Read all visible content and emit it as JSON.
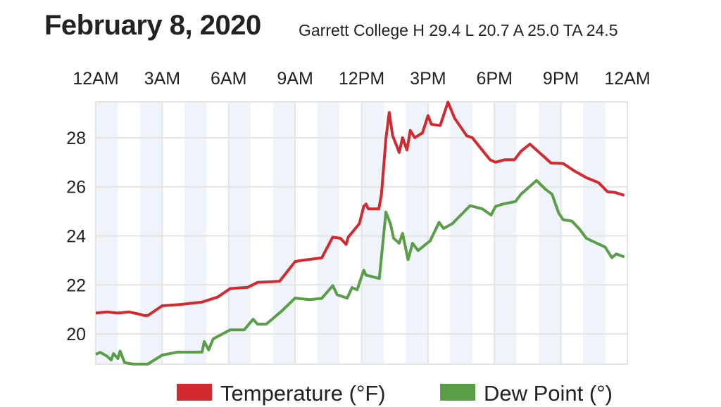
{
  "header": {
    "title": "February 8, 2020",
    "subtitle": "Garrett College H 29.4 L 20.7 A 25.0 TA 24.5"
  },
  "chart_data": {
    "type": "line",
    "title": "February 8, 2020",
    "subtitle": "Garrett College H 29.4 L 20.7 A 25.0 TA 24.5",
    "xlabel": "",
    "ylabel": "",
    "x_unit": "hour of day",
    "xlim": [
      0,
      24
    ],
    "ylim": [
      18.77,
      29.46
    ],
    "x_ticks": [
      0,
      3,
      6,
      9,
      12,
      15,
      18,
      21,
      24
    ],
    "x_tick_labels": [
      "12AM",
      "3AM",
      "6AM",
      "9AM",
      "12PM",
      "3PM",
      "6PM",
      "9PM",
      "12AM"
    ],
    "y_ticks": [
      20,
      22,
      24,
      26,
      28
    ],
    "y_tick_labels": [
      "20",
      "22",
      "24",
      "26",
      "28"
    ],
    "grid": true,
    "shaded_hours": "alternate (even hours)",
    "legend_position": "bottom",
    "series": [
      {
        "name": "Temperature (°F)",
        "color": "#d32a30",
        "points": [
          [
            0,
            20.85
          ],
          [
            0.5,
            20.9
          ],
          [
            1,
            20.85
          ],
          [
            1.5,
            20.9
          ],
          [
            2,
            20.8
          ],
          [
            2.2,
            20.75
          ],
          [
            2.35,
            20.75
          ],
          [
            3,
            21.15
          ],
          [
            3.8,
            21.2
          ],
          [
            4.8,
            21.3
          ],
          [
            5.5,
            21.5
          ],
          [
            6.07,
            21.85
          ],
          [
            6.85,
            21.9
          ],
          [
            7.3,
            22.1
          ],
          [
            8.3,
            22.15
          ],
          [
            9,
            22.95
          ],
          [
            9.3,
            23.0
          ],
          [
            10.2,
            23.1
          ],
          [
            10.7,
            23.95
          ],
          [
            11.05,
            23.9
          ],
          [
            11.3,
            23.65
          ],
          [
            11.4,
            23.95
          ],
          [
            11.9,
            24.5
          ],
          [
            12.1,
            25.2
          ],
          [
            12.2,
            25.3
          ],
          [
            12.3,
            25.1
          ],
          [
            12.78,
            25.1
          ],
          [
            12.9,
            25.7
          ],
          [
            13.1,
            27.97
          ],
          [
            13.25,
            29.03
          ],
          [
            13.4,
            28.1
          ],
          [
            13.7,
            27.4
          ],
          [
            13.85,
            28.0
          ],
          [
            14.05,
            27.5
          ],
          [
            14.2,
            28.3
          ],
          [
            14.4,
            28.0
          ],
          [
            14.75,
            28.2
          ],
          [
            15.0,
            28.9
          ],
          [
            15.15,
            28.55
          ],
          [
            15.55,
            28.5
          ],
          [
            15.9,
            29.45
          ],
          [
            16.2,
            28.8
          ],
          [
            16.75,
            28.08
          ],
          [
            17.0,
            28.0
          ],
          [
            17.3,
            27.66
          ],
          [
            17.8,
            27.1
          ],
          [
            18.05,
            27.0
          ],
          [
            18.45,
            27.1
          ],
          [
            18.9,
            27.1
          ],
          [
            19.2,
            27.45
          ],
          [
            19.6,
            27.74
          ],
          [
            19.9,
            27.5
          ],
          [
            20.55,
            26.97
          ],
          [
            21.1,
            26.95
          ],
          [
            21.6,
            26.65
          ],
          [
            22.15,
            26.37
          ],
          [
            22.7,
            26.17
          ],
          [
            23.1,
            25.8
          ],
          [
            23.45,
            25.77
          ],
          [
            23.86,
            25.65
          ]
        ]
      },
      {
        "name": "Dew Point (°)",
        "color": "#5a9e47",
        "points": [
          [
            0,
            19.17
          ],
          [
            0.2,
            19.25
          ],
          [
            0.5,
            19.1
          ],
          [
            0.7,
            18.94
          ],
          [
            0.8,
            19.2
          ],
          [
            1.0,
            19.0
          ],
          [
            1.1,
            19.3
          ],
          [
            1.3,
            18.83
          ],
          [
            1.7,
            18.77
          ],
          [
            2.35,
            18.77
          ],
          [
            3.0,
            19.14
          ],
          [
            3.7,
            19.26
          ],
          [
            4.8,
            19.26
          ],
          [
            4.9,
            19.69
          ],
          [
            5.1,
            19.35
          ],
          [
            5.3,
            19.8
          ],
          [
            6.07,
            20.17
          ],
          [
            6.7,
            20.17
          ],
          [
            7.1,
            20.6
          ],
          [
            7.3,
            20.4
          ],
          [
            7.7,
            20.4
          ],
          [
            8.4,
            20.94
          ],
          [
            9.0,
            21.46
          ],
          [
            9.65,
            21.4
          ],
          [
            10.2,
            21.45
          ],
          [
            10.7,
            21.97
          ],
          [
            10.9,
            21.6
          ],
          [
            11.35,
            21.46
          ],
          [
            11.57,
            21.89
          ],
          [
            11.8,
            21.8
          ],
          [
            12.1,
            22.6
          ],
          [
            12.2,
            22.4
          ],
          [
            12.8,
            22.26
          ],
          [
            13.1,
            24.97
          ],
          [
            13.3,
            24.5
          ],
          [
            13.45,
            23.9
          ],
          [
            13.7,
            23.7
          ],
          [
            13.85,
            24.1
          ],
          [
            14.1,
            23.03
          ],
          [
            14.3,
            23.7
          ],
          [
            14.55,
            23.4
          ],
          [
            15.1,
            23.8
          ],
          [
            15.5,
            24.55
          ],
          [
            15.7,
            24.3
          ],
          [
            16.1,
            24.5
          ],
          [
            16.9,
            25.23
          ],
          [
            17.45,
            25.1
          ],
          [
            17.85,
            24.85
          ],
          [
            18.05,
            25.2
          ],
          [
            18.4,
            25.3
          ],
          [
            18.95,
            25.4
          ],
          [
            19.2,
            25.7
          ],
          [
            19.9,
            26.26
          ],
          [
            20.3,
            25.9
          ],
          [
            20.6,
            25.7
          ],
          [
            20.9,
            24.93
          ],
          [
            21.1,
            24.66
          ],
          [
            21.5,
            24.6
          ],
          [
            21.85,
            24.26
          ],
          [
            22.15,
            23.9
          ],
          [
            23.0,
            23.54
          ],
          [
            23.3,
            23.11
          ],
          [
            23.5,
            23.26
          ],
          [
            23.86,
            23.14
          ]
        ]
      }
    ],
    "legend": [
      "Temperature (°F)",
      "Dew Point (°)"
    ]
  }
}
